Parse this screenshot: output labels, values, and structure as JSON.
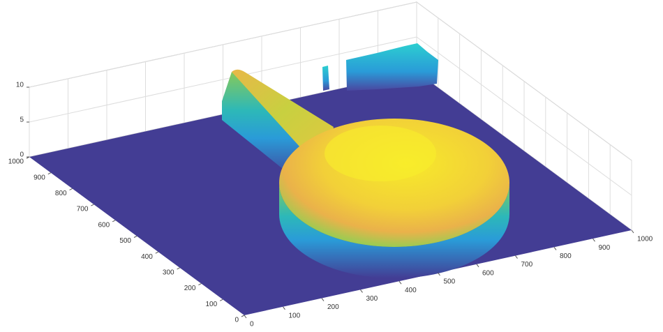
{
  "chart_data": {
    "type": "surface",
    "xlim": [
      0,
      1000
    ],
    "xticks": [
      0,
      100,
      200,
      300,
      400,
      500,
      600,
      700,
      800,
      900,
      1000
    ],
    "ylim": [
      0,
      1000
    ],
    "yticks": [
      0,
      100,
      200,
      300,
      400,
      500,
      600,
      700,
      800,
      900,
      1000
    ],
    "zlim": [
      0,
      10
    ],
    "zticks": [
      0,
      5,
      10
    ],
    "grid": true
  }
}
